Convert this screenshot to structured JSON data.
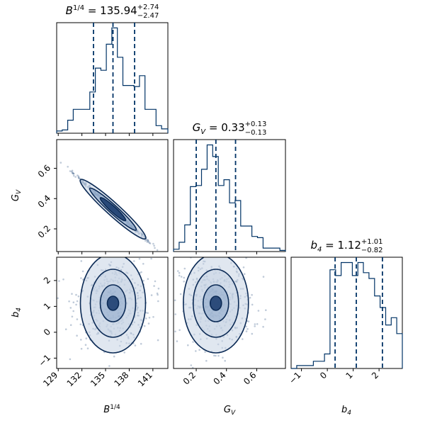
{
  "chart_data": {
    "type": "corner",
    "colors": {
      "primary": "#003366",
      "contour": "#0b2a55"
    },
    "parameters": [
      {
        "key": "B",
        "label_main": "B",
        "label_sup": "1/4",
        "title_main": "B",
        "title_sup": "1/4",
        "value": "135.94",
        "plus": "+2.74",
        "minus": "−2.47",
        "range": [
          128.8,
          142.9
        ],
        "quantiles": [
          133.47,
          135.94,
          138.68
        ],
        "ticks": [
          129,
          132,
          135,
          138,
          141
        ],
        "tick_labels": [
          "129",
          "132",
          "135",
          "138",
          "141"
        ],
        "hist_edges": [
          128.8,
          129.5,
          130.2,
          130.9,
          131.6,
          132.3,
          133.0,
          133.7,
          134.4,
          135.1,
          135.8,
          136.5,
          137.2,
          137.9,
          138.6,
          139.3,
          140.0,
          140.7,
          141.4,
          142.1,
          142.9
        ],
        "hist_values": [
          0.02,
          0.03,
          0.12,
          0.22,
          0.22,
          0.22,
          0.38,
          0.6,
          0.58,
          0.82,
          0.97,
          0.7,
          0.44,
          0.44,
          0.43,
          0.53,
          0.22,
          0.22,
          0.07,
          0.04
        ]
      },
      {
        "key": "Gv",
        "label_main": "G",
        "label_sub": "V",
        "title_main": "G",
        "title_sub": "V",
        "value": "0.33",
        "plus": "+0.13",
        "minus": "−0.13",
        "range": [
          0.05,
          0.79
        ],
        "quantiles": [
          0.2,
          0.33,
          0.46
        ],
        "ticks": [
          0.2,
          0.4,
          0.6
        ],
        "tick_labels": [
          "0.2",
          "0.4",
          "0.6"
        ],
        "hist_edges": [
          0.05,
          0.087,
          0.124,
          0.161,
          0.198,
          0.235,
          0.272,
          0.309,
          0.346,
          0.383,
          0.42,
          0.457,
          0.494,
          0.531,
          0.568,
          0.605,
          0.642,
          0.679,
          0.716,
          0.753,
          0.79
        ],
        "hist_values": [
          0.02,
          0.08,
          0.23,
          0.56,
          0.57,
          0.71,
          0.92,
          0.82,
          0.57,
          0.62,
          0.42,
          0.44,
          0.22,
          0.22,
          0.13,
          0.12,
          0.03,
          0.03,
          0.03,
          0.01
        ]
      },
      {
        "key": "b4",
        "label_main": "b",
        "label_sub": "4",
        "title_main": "b",
        "title_sub": "4",
        "value": "1.12",
        "plus": "+1.01",
        "minus": "−0.82",
        "range": [
          -1.4,
          2.9
        ],
        "quantiles": [
          0.3,
          1.12,
          2.13
        ],
        "ticks": [
          -1,
          0,
          1,
          2
        ],
        "tick_labels": [
          "−1",
          "0",
          "1",
          "2"
        ],
        "hist_edges": [
          -1.4,
          -1.185,
          -0.97,
          -0.755,
          -0.54,
          -0.325,
          -0.11,
          0.105,
          0.32,
          0.535,
          0.75,
          0.965,
          1.18,
          1.395,
          1.61,
          1.825,
          2.04,
          2.255,
          2.47,
          2.685,
          2.9
        ],
        "hist_values": [
          0.0,
          0.02,
          0.02,
          0.02,
          0.05,
          0.05,
          0.1,
          0.68,
          0.64,
          0.73,
          0.73,
          0.64,
          0.73,
          0.66,
          0.62,
          0.5,
          0.42,
          0.3,
          0.35,
          0.24
        ]
      }
    ]
  }
}
